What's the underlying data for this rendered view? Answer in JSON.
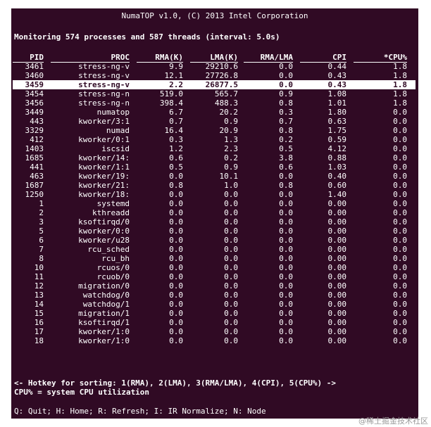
{
  "window": {
    "title": "NumaTOP v1.0, (C) 2013 Intel Corporation"
  },
  "summary": {
    "text": "Monitoring 574 processes and 587 threads (interval: 5.0s)"
  },
  "table": {
    "columns": [
      "PID",
      "PROC",
      "RMA(K)",
      "LMA(K)",
      "RMA/LMA",
      "CPI",
      "*CPU%"
    ],
    "selected_index": 2,
    "rows": [
      {
        "pid": "3461",
        "proc": "stress-ng-v",
        "rma": "9.9",
        "lma": "29210.6",
        "rl": "0.0",
        "cpi": "0.44",
        "cpu": "1.8"
      },
      {
        "pid": "3460",
        "proc": "stress-ng-v",
        "rma": "12.1",
        "lma": "27726.8",
        "rl": "0.0",
        "cpi": "0.43",
        "cpu": "1.8"
      },
      {
        "pid": "3459",
        "proc": "stress-ng-v",
        "rma": "2.2",
        "lma": "26877.5",
        "rl": "0.0",
        "cpi": "0.43",
        "cpu": "1.8"
      },
      {
        "pid": "3454",
        "proc": "stress-ng-n",
        "rma": "519.0",
        "lma": "565.7",
        "rl": "0.9",
        "cpi": "1.08",
        "cpu": "1.8"
      },
      {
        "pid": "3456",
        "proc": "stress-ng-n",
        "rma": "398.4",
        "lma": "488.3",
        "rl": "0.8",
        "cpi": "1.01",
        "cpu": "1.8"
      },
      {
        "pid": "3449",
        "proc": "numatop",
        "rma": "6.7",
        "lma": "20.2",
        "rl": "0.3",
        "cpi": "1.80",
        "cpu": "0.0"
      },
      {
        "pid": "443",
        "proc": "kworker/3:1",
        "rma": "0.7",
        "lma": "0.9",
        "rl": "0.7",
        "cpi": "0.63",
        "cpu": "0.0"
      },
      {
        "pid": "3329",
        "proc": "numad",
        "rma": "16.4",
        "lma": "20.9",
        "rl": "0.8",
        "cpi": "1.75",
        "cpu": "0.0"
      },
      {
        "pid": "412",
        "proc": "kworker/0:1",
        "rma": "0.3",
        "lma": "1.3",
        "rl": "0.2",
        "cpi": "0.59",
        "cpu": "0.0"
      },
      {
        "pid": "1403",
        "proc": "iscsid",
        "rma": "1.2",
        "lma": "2.3",
        "rl": "0.5",
        "cpi": "4.12",
        "cpu": "0.0"
      },
      {
        "pid": "1685",
        "proc": "kworker/14:",
        "rma": "0.6",
        "lma": "0.2",
        "rl": "3.8",
        "cpi": "0.88",
        "cpu": "0.0"
      },
      {
        "pid": "441",
        "proc": "kworker/1:1",
        "rma": "0.5",
        "lma": "0.9",
        "rl": "0.6",
        "cpi": "1.03",
        "cpu": "0.0"
      },
      {
        "pid": "463",
        "proc": "kworker/19:",
        "rma": "0.0",
        "lma": "10.1",
        "rl": "0.0",
        "cpi": "0.40",
        "cpu": "0.0"
      },
      {
        "pid": "1687",
        "proc": "kworker/21:",
        "rma": "0.8",
        "lma": "1.0",
        "rl": "0.8",
        "cpi": "0.60",
        "cpu": "0.0"
      },
      {
        "pid": "1250",
        "proc": "kworker/18:",
        "rma": "0.0",
        "lma": "0.0",
        "rl": "0.0",
        "cpi": "1.40",
        "cpu": "0.0"
      },
      {
        "pid": "1",
        "proc": "systemd",
        "rma": "0.0",
        "lma": "0.0",
        "rl": "0.0",
        "cpi": "0.00",
        "cpu": "0.0"
      },
      {
        "pid": "2",
        "proc": "kthreadd",
        "rma": "0.0",
        "lma": "0.0",
        "rl": "0.0",
        "cpi": "0.00",
        "cpu": "0.0"
      },
      {
        "pid": "3",
        "proc": "ksoftirqd/0",
        "rma": "0.0",
        "lma": "0.0",
        "rl": "0.0",
        "cpi": "0.00",
        "cpu": "0.0"
      },
      {
        "pid": "5",
        "proc": "kworker/0:0",
        "rma": "0.0",
        "lma": "0.0",
        "rl": "0.0",
        "cpi": "0.00",
        "cpu": "0.0"
      },
      {
        "pid": "6",
        "proc": "kworker/u28",
        "rma": "0.0",
        "lma": "0.0",
        "rl": "0.0",
        "cpi": "0.00",
        "cpu": "0.0"
      },
      {
        "pid": "7",
        "proc": "rcu_sched",
        "rma": "0.0",
        "lma": "0.0",
        "rl": "0.0",
        "cpi": "0.00",
        "cpu": "0.0"
      },
      {
        "pid": "8",
        "proc": "rcu_bh",
        "rma": "0.0",
        "lma": "0.0",
        "rl": "0.0",
        "cpi": "0.00",
        "cpu": "0.0"
      },
      {
        "pid": "10",
        "proc": "rcuos/0",
        "rma": "0.0",
        "lma": "0.0",
        "rl": "0.0",
        "cpi": "0.00",
        "cpu": "0.0"
      },
      {
        "pid": "11",
        "proc": "rcuob/0",
        "rma": "0.0",
        "lma": "0.0",
        "rl": "0.0",
        "cpi": "0.00",
        "cpu": "0.0"
      },
      {
        "pid": "12",
        "proc": "migration/0",
        "rma": "0.0",
        "lma": "0.0",
        "rl": "0.0",
        "cpi": "0.00",
        "cpu": "0.0"
      },
      {
        "pid": "13",
        "proc": "watchdog/0",
        "rma": "0.0",
        "lma": "0.0",
        "rl": "0.0",
        "cpi": "0.00",
        "cpu": "0.0"
      },
      {
        "pid": "14",
        "proc": "watchdog/1",
        "rma": "0.0",
        "lma": "0.0",
        "rl": "0.0",
        "cpi": "0.00",
        "cpu": "0.0"
      },
      {
        "pid": "15",
        "proc": "migration/1",
        "rma": "0.0",
        "lma": "0.0",
        "rl": "0.0",
        "cpi": "0.00",
        "cpu": "0.0"
      },
      {
        "pid": "16",
        "proc": "ksoftirqd/1",
        "rma": "0.0",
        "lma": "0.0",
        "rl": "0.0",
        "cpi": "0.00",
        "cpu": "0.0"
      },
      {
        "pid": "17",
        "proc": "kworker/1:0",
        "rma": "0.0",
        "lma": "0.0",
        "rl": "0.0",
        "cpi": "0.00",
        "cpu": "0.0"
      },
      {
        "pid": "18",
        "proc": "kworker/1:0",
        "rma": "0.0",
        "lma": "0.0",
        "rl": "0.0",
        "cpi": "0.00",
        "cpu": "0.0"
      }
    ]
  },
  "hints": {
    "sorting": "<- Hotkey for sorting: 1(RMA), 2(LMA), 3(RMA/LMA), 4(CPI), 5(CPU%) ->",
    "cpu_note": "CPU% = system CPU utilization"
  },
  "footer": {
    "hotkeys": "Q: Quit; H: Home; R: Refresh; I: IR Normalize; N: Node"
  },
  "watermark": "@稀土掘金技术社区",
  "colors": {
    "background": "#300a24",
    "foreground": "#ffffff"
  }
}
